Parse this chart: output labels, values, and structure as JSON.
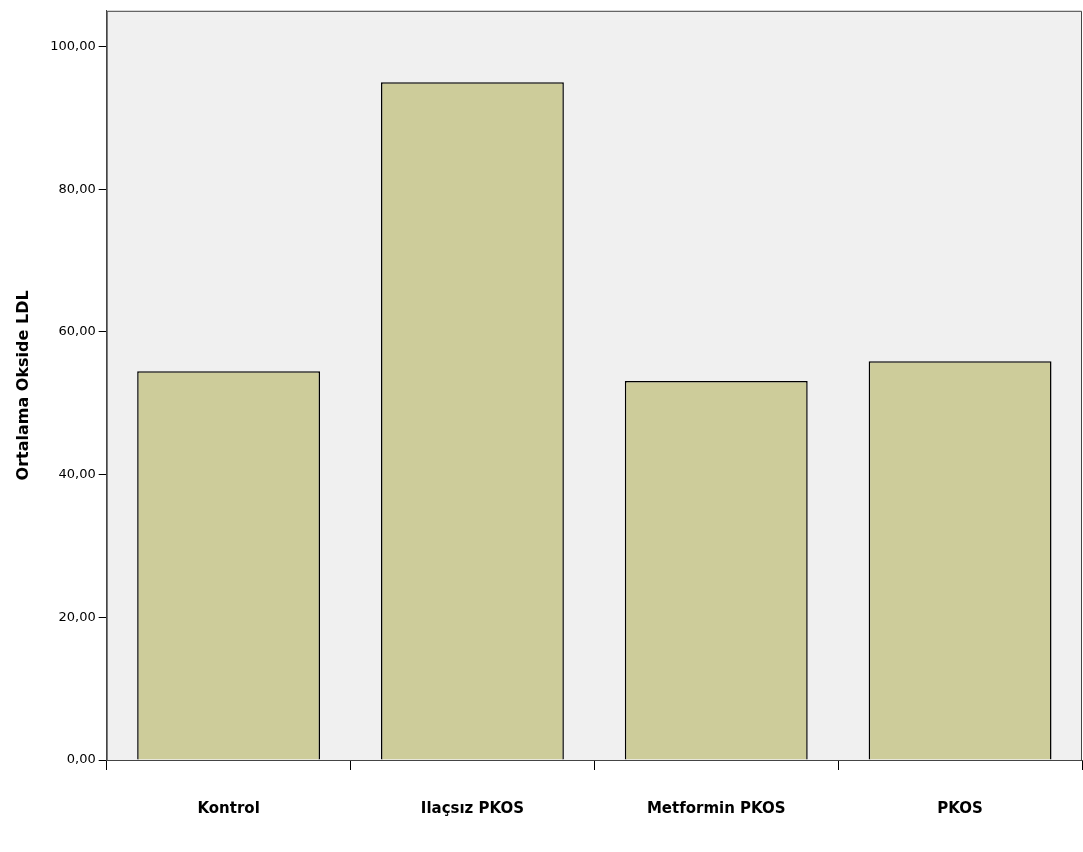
{
  "chart_data": {
    "type": "bar",
    "ylabel": "Ortalama Okside LDL",
    "categories": [
      "Kontrol",
      "Ilaçsız PKOS",
      "Metformin PKOS",
      "PKOS"
    ],
    "values": [
      54.5,
      95,
      53.1,
      55.9
    ],
    "color": "#cdcc9a",
    "ylim": [
      0,
      105
    ],
    "yticks": [
      {
        "value": 0,
        "label": "0,00"
      },
      {
        "value": 20,
        "label": "20,00"
      },
      {
        "value": 40,
        "label": "40,00"
      },
      {
        "value": 60,
        "label": "60,00"
      },
      {
        "value": 80,
        "label": "80,00"
      },
      {
        "value": 100,
        "label": "100,00"
      }
    ],
    "grid": false,
    "legend": false
  }
}
